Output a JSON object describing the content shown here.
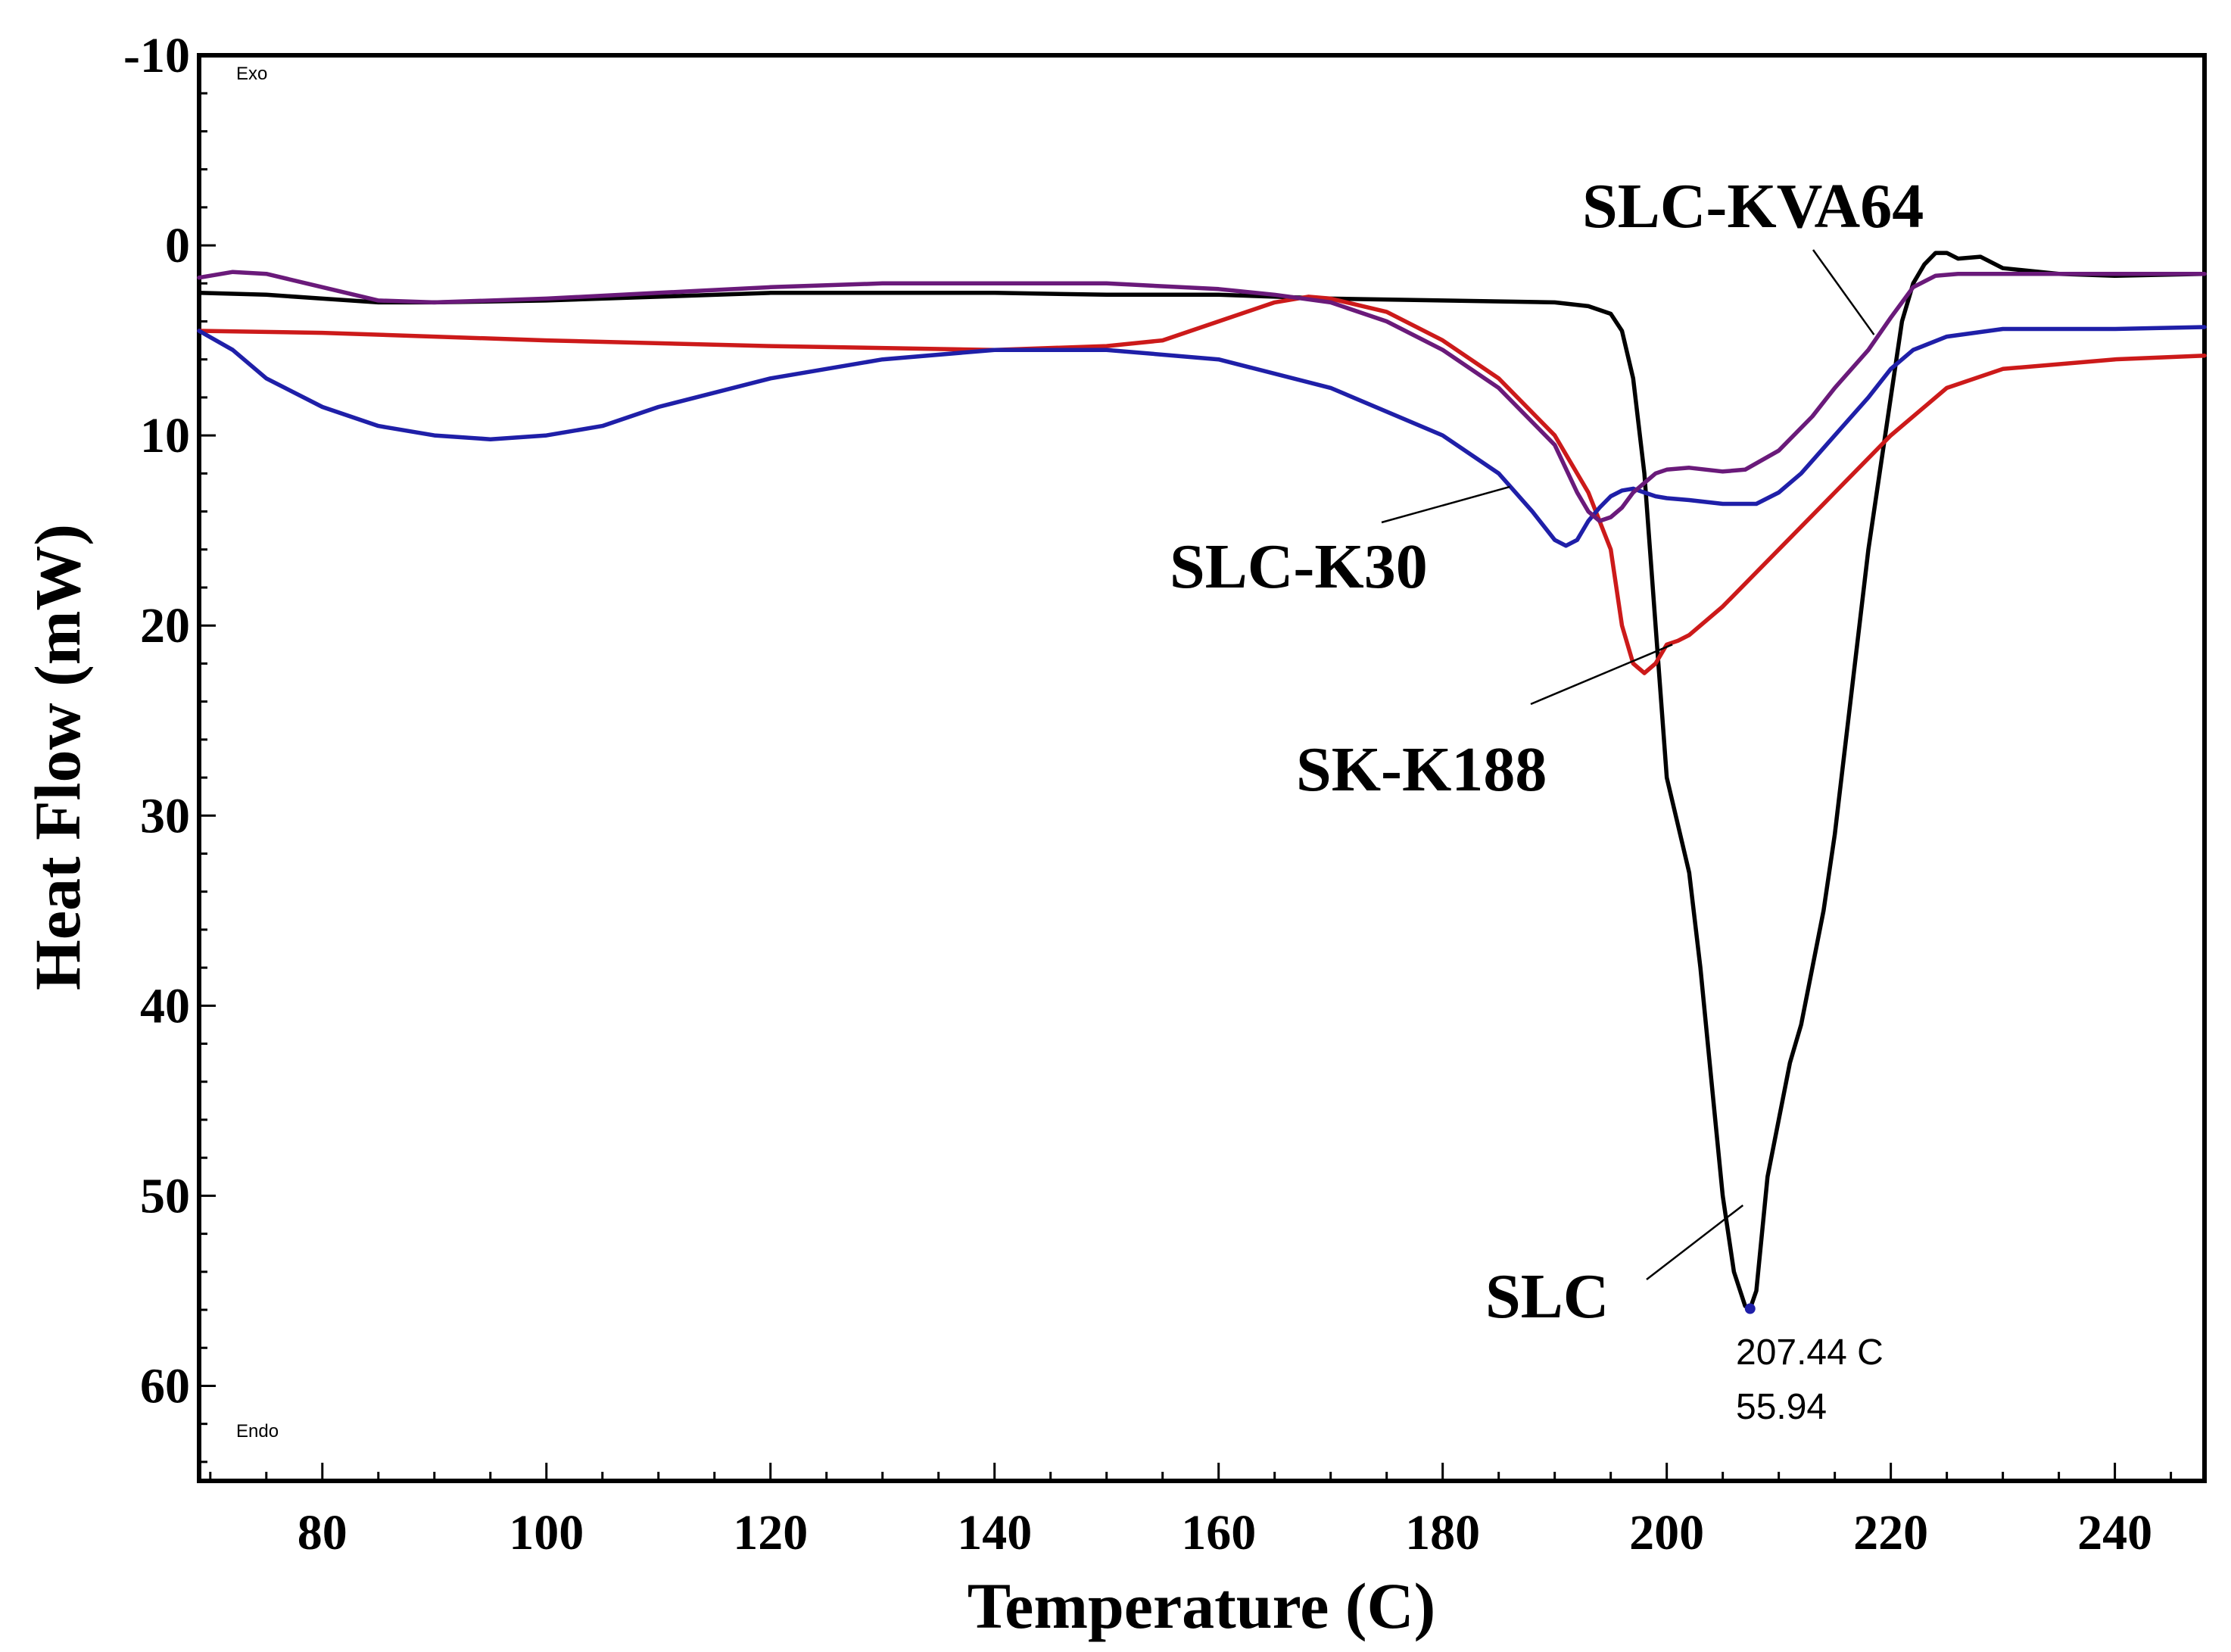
{
  "chart_data": {
    "type": "line",
    "title": "",
    "xlabel": "Temperature (C)",
    "ylabel": "Heat Flow (mW)",
    "xlim": [
      69,
      248
    ],
    "ylim": [
      65,
      -10
    ],
    "y_inverted": true,
    "xticks": [
      80,
      100,
      120,
      140,
      160,
      180,
      200,
      220,
      240
    ],
    "yticks": [
      -10,
      0,
      10,
      20,
      30,
      40,
      50,
      60
    ],
    "corner_notes": {
      "top": "Exo",
      "bottom": "Endo"
    },
    "series": [
      {
        "name": "SLC",
        "color": "#000000",
        "x": [
          69,
          75,
          80,
          85,
          90,
          100,
          110,
          120,
          130,
          140,
          150,
          160,
          170,
          180,
          190,
          193,
          195,
          196,
          197,
          198,
          199,
          200,
          201,
          202,
          203,
          204,
          205,
          206,
          207,
          207.44,
          208,
          209,
          210,
          211,
          212,
          213,
          214,
          215,
          216,
          217,
          218,
          219,
          220,
          221,
          222,
          223,
          224,
          225,
          226,
          228,
          230,
          235,
          240,
          248
        ],
        "y": [
          2.5,
          2.6,
          2.8,
          3,
          3,
          2.9,
          2.7,
          2.5,
          2.5,
          2.5,
          2.6,
          2.6,
          2.8,
          2.9,
          3,
          3.2,
          3.6,
          4.5,
          7,
          12,
          20,
          28,
          30.5,
          33,
          38,
          44,
          50,
          54,
          55.8,
          55.94,
          55,
          49,
          46,
          43,
          41,
          38,
          35,
          31,
          26,
          21,
          16,
          12,
          8,
          4,
          2,
          1,
          0.4,
          0.4,
          0.7,
          0.6,
          1.2,
          1.5,
          1.6,
          1.5
        ]
      },
      {
        "name": "SLC-K30",
        "color": "#1f1fa8",
        "x": [
          69,
          72,
          75,
          80,
          85,
          90,
          95,
          100,
          105,
          110,
          120,
          130,
          140,
          150,
          160,
          170,
          180,
          185,
          188,
          190,
          191,
          192,
          193,
          194,
          195,
          196,
          197,
          198,
          199,
          200,
          202,
          205,
          208,
          210,
          212,
          215,
          218,
          220,
          222,
          225,
          230,
          240,
          248
        ],
        "y": [
          4.5,
          5.5,
          7,
          8.5,
          9.5,
          10,
          10.2,
          10,
          9.5,
          8.5,
          7,
          6,
          5.5,
          5.5,
          6,
          7.5,
          10,
          12,
          14,
          15.5,
          15.8,
          15.5,
          14.5,
          13.8,
          13.2,
          12.9,
          12.8,
          13,
          13.2,
          13.3,
          13.4,
          13.6,
          13.6,
          13,
          12,
          10,
          8,
          6.5,
          5.5,
          4.8,
          4.4,
          4.4,
          4.3
        ]
      },
      {
        "name": "SK-K188",
        "color": "#cc1a1a",
        "x": [
          69,
          80,
          100,
          120,
          140,
          150,
          155,
          160,
          165,
          168,
          170,
          175,
          180,
          185,
          190,
          193,
          195,
          196,
          197,
          198,
          199,
          200,
          201,
          202,
          205,
          210,
          215,
          220,
          225,
          230,
          240,
          248
        ],
        "y": [
          4.5,
          4.6,
          5,
          5.3,
          5.5,
          5.3,
          5,
          4,
          3,
          2.7,
          2.8,
          3.5,
          5,
          7,
          10,
          13,
          16,
          20,
          22,
          22.5,
          22,
          21,
          20.8,
          20.5,
          19,
          16,
          13,
          10,
          7.5,
          6.5,
          6,
          5.8
        ]
      },
      {
        "name": "SLC-KVA64",
        "color": "#6a1a7a",
        "x": [
          69,
          70,
          72,
          75,
          80,
          85,
          90,
          100,
          110,
          120,
          130,
          140,
          150,
          160,
          165,
          170,
          175,
          180,
          185,
          190,
          192,
          193,
          194,
          195,
          196,
          197,
          198,
          199,
          200,
          202,
          205,
          207,
          210,
          213,
          215,
          218,
          220,
          222,
          224,
          226,
          228,
          230,
          240,
          248
        ],
        "y": [
          1.7,
          1.6,
          1.4,
          1.5,
          2.2,
          2.9,
          3,
          2.8,
          2.5,
          2.2,
          2,
          2,
          2,
          2.3,
          2.6,
          3,
          4,
          5.5,
          7.5,
          10.5,
          13,
          14,
          14.5,
          14.3,
          13.8,
          13,
          12.5,
          12,
          11.8,
          11.7,
          11.9,
          11.8,
          10.8,
          9,
          7.5,
          5.5,
          3.8,
          2.2,
          1.6,
          1.5,
          1.5,
          1.5,
          1.5,
          1.5
        ]
      }
    ],
    "labels": [
      {
        "text": "SLC-KVA64",
        "series": "SLC-KVA64"
      },
      {
        "text": "SLC-K30",
        "series": "SLC-K30"
      },
      {
        "text": "SK-K188",
        "series": "SK-K188"
      },
      {
        "text": "SLC",
        "series": "SLC"
      }
    ],
    "peak_annotation": {
      "x": 207.44,
      "y": 55.94,
      "line1": "207.44 C",
      "line2": "55.94"
    }
  }
}
